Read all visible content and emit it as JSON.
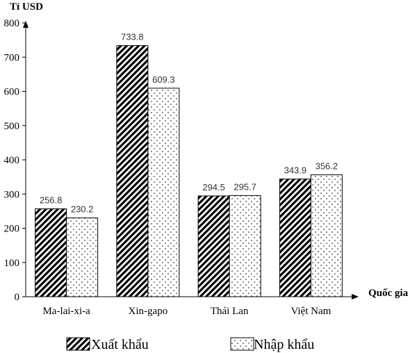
{
  "chart_data": {
    "type": "bar",
    "ylabel": "Tỉ USD",
    "xlabel": "Quốc gia",
    "ylim": [
      0,
      800
    ],
    "yticks": [
      0,
      100,
      200,
      300,
      400,
      500,
      600,
      700,
      800
    ],
    "categories": [
      "Ma-lai-xi-a",
      "Xin-gapo",
      "Thái Lan",
      "Việt Nam"
    ],
    "series": [
      {
        "name": "Xuất khẩu",
        "values": [
          256.8,
          733.8,
          294.5,
          343.9
        ],
        "pattern": "diagonal-hatch"
      },
      {
        "name": "Nhập khẩu",
        "values": [
          230.2,
          609.3,
          295.7,
          356.2
        ],
        "pattern": "dots"
      }
    ],
    "data_labels": [
      [
        "256.8",
        "733.8",
        "294.5",
        "343.9"
      ],
      [
        "230.2",
        "609.3",
        "295.7",
        "356.2"
      ]
    ],
    "grid": false,
    "legend_position": "bottom"
  }
}
